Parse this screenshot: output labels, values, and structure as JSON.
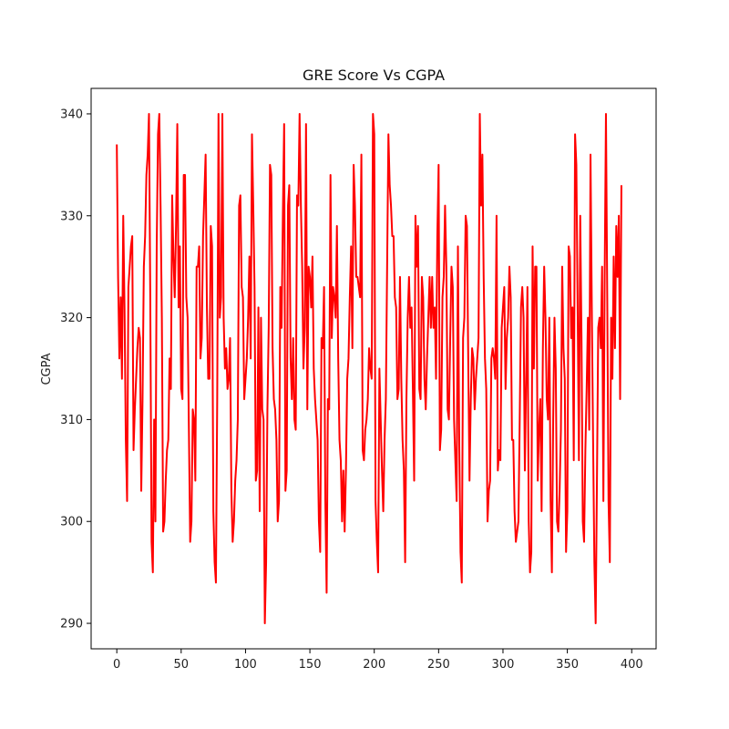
{
  "chart_data": {
    "type": "line",
    "title": "GRE Score Vs CGPA",
    "xlabel": "",
    "ylabel": "CGPA",
    "xlim": [
      -19.95,
      418.95
    ],
    "ylim": [
      287.5,
      342.5
    ],
    "xticks": [
      0,
      50,
      100,
      150,
      200,
      250,
      300,
      350,
      400
    ],
    "yticks": [
      290,
      300,
      310,
      320,
      330,
      340
    ],
    "grid": false,
    "legend": "none",
    "series": [
      {
        "color": "#ff0000",
        "x_start": 0,
        "x_step": 1,
        "values": [
          337,
          324,
          316,
          322,
          314,
          330,
          321,
          308,
          302,
          323,
          325,
          327,
          328,
          307,
          311,
          314,
          317,
          319,
          318,
          303,
          312,
          325,
          328,
          334,
          336,
          340,
          322,
          298,
          295,
          310,
          300,
          327,
          338,
          340,
          331,
          320,
          299,
          300,
          304,
          307,
          308,
          316,
          313,
          332,
          326,
          322,
          329,
          339,
          321,
          327,
          313,
          312,
          334,
          334,
          322,
          320,
          309,
          298,
          300,
          311,
          310,
          304,
          325,
          325,
          327,
          316,
          318,
          328,
          332,
          336,
          321,
          314,
          314,
          329,
          327,
          301,
          296,
          294,
          312,
          340,
          320,
          322,
          340,
          320,
          315,
          317,
          313,
          314,
          318,
          303,
          298,
          300,
          304,
          306,
          310,
          331,
          332,
          323,
          322,
          312,
          314,
          316,
          320,
          326,
          316,
          338,
          331,
          323,
          304,
          305,
          321,
          301,
          320,
          311,
          310,
          290,
          296,
          311,
          319,
          335,
          334,
          317,
          312,
          311,
          308,
          300,
          302,
          323,
          319,
          330,
          339,
          303,
          305,
          331,
          333,
          316,
          312,
          318,
          310,
          309,
          332,
          331,
          340,
          331,
          325,
          315,
          319,
          339,
          311,
          325,
          324,
          321,
          326,
          315,
          312,
          310,
          308,
          300,
          297,
          318,
          317,
          323,
          302,
          293,
          312,
          311,
          334,
          318,
          323,
          322,
          320,
          329,
          316,
          308,
          306,
          300,
          305,
          299,
          305,
          314,
          316,
          322,
          327,
          317,
          335,
          331,
          324,
          324,
          323,
          322,
          336,
          307,
          306,
          309,
          310,
          312,
          317,
          315,
          314,
          340,
          338,
          302,
          298,
          295,
          315,
          310,
          305,
          301,
          308,
          312,
          325,
          338,
          333,
          331,
          328,
          328,
          322,
          321,
          312,
          313,
          324,
          314,
          308,
          305,
          296,
          312,
          320,
          324,
          319,
          321,
          313,
          304,
          330,
          325,
          329,
          313,
          312,
          324,
          322,
          314,
          311,
          316,
          320,
          324,
          319,
          324,
          319,
          321,
          314,
          328,
          335,
          307,
          309,
          322,
          324,
          331,
          325,
          311,
          310,
          318,
          325,
          323,
          310,
          306,
          302,
          327,
          308,
          297,
          294,
          318,
          320,
          330,
          329,
          316,
          304,
          312,
          317,
          316,
          311,
          314,
          316,
          318,
          340,
          331,
          336,
          324,
          316,
          313,
          300,
          303,
          304,
          316,
          317,
          316,
          314,
          330,
          305,
          307,
          306,
          319,
          321,
          323,
          313,
          318,
          320,
          325,
          322,
          308,
          308,
          301,
          298,
          299,
          300,
          310,
          321,
          323,
          320,
          305,
          314,
          323,
          300,
          295,
          297,
          327,
          315,
          325,
          325,
          304,
          309,
          312,
          301,
          317,
          325,
          320,
          312,
          310,
          320,
          302,
          295,
          310,
          320,
          315,
          300,
          299,
          303,
          309,
          325,
          317,
          314,
          297,
          301,
          327,
          326,
          318,
          321,
          306,
          338,
          335,
          321,
          306,
          330,
          318,
          300,
          298,
          307,
          313,
          320,
          309,
          336,
          321,
          308,
          296,
          290,
          304,
          319,
          320,
          317,
          325,
          302,
          324,
          340,
          322,
          302,
          296,
          320,
          314,
          326,
          317,
          329,
          324,
          330,
          312,
          333
        ]
      }
    ]
  }
}
